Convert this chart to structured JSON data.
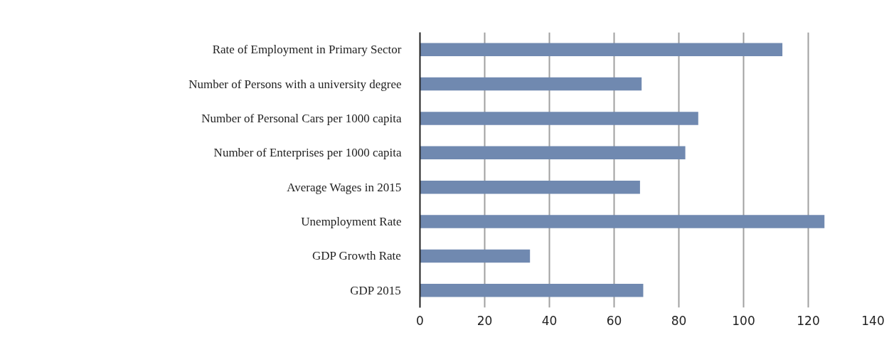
{
  "chart_data": {
    "type": "bar",
    "orientation": "horizontal",
    "categories": [
      "Rate of Employment in Primary Sector",
      "Number of Persons with a university degree",
      "Number of Personal Cars per 1000 capita",
      "Number of Enterprises per 1000 capita",
      "Average Wages in 2015",
      "Unemployment Rate",
      "GDP Growth Rate",
      "GDP 2015"
    ],
    "values": [
      112,
      68.5,
      86,
      82,
      68,
      125,
      34,
      69
    ],
    "color": "#7089b0",
    "xlim": [
      0,
      140
    ],
    "xticks": [
      0,
      20,
      40,
      60,
      80,
      100,
      120,
      140
    ],
    "grid": "x"
  }
}
